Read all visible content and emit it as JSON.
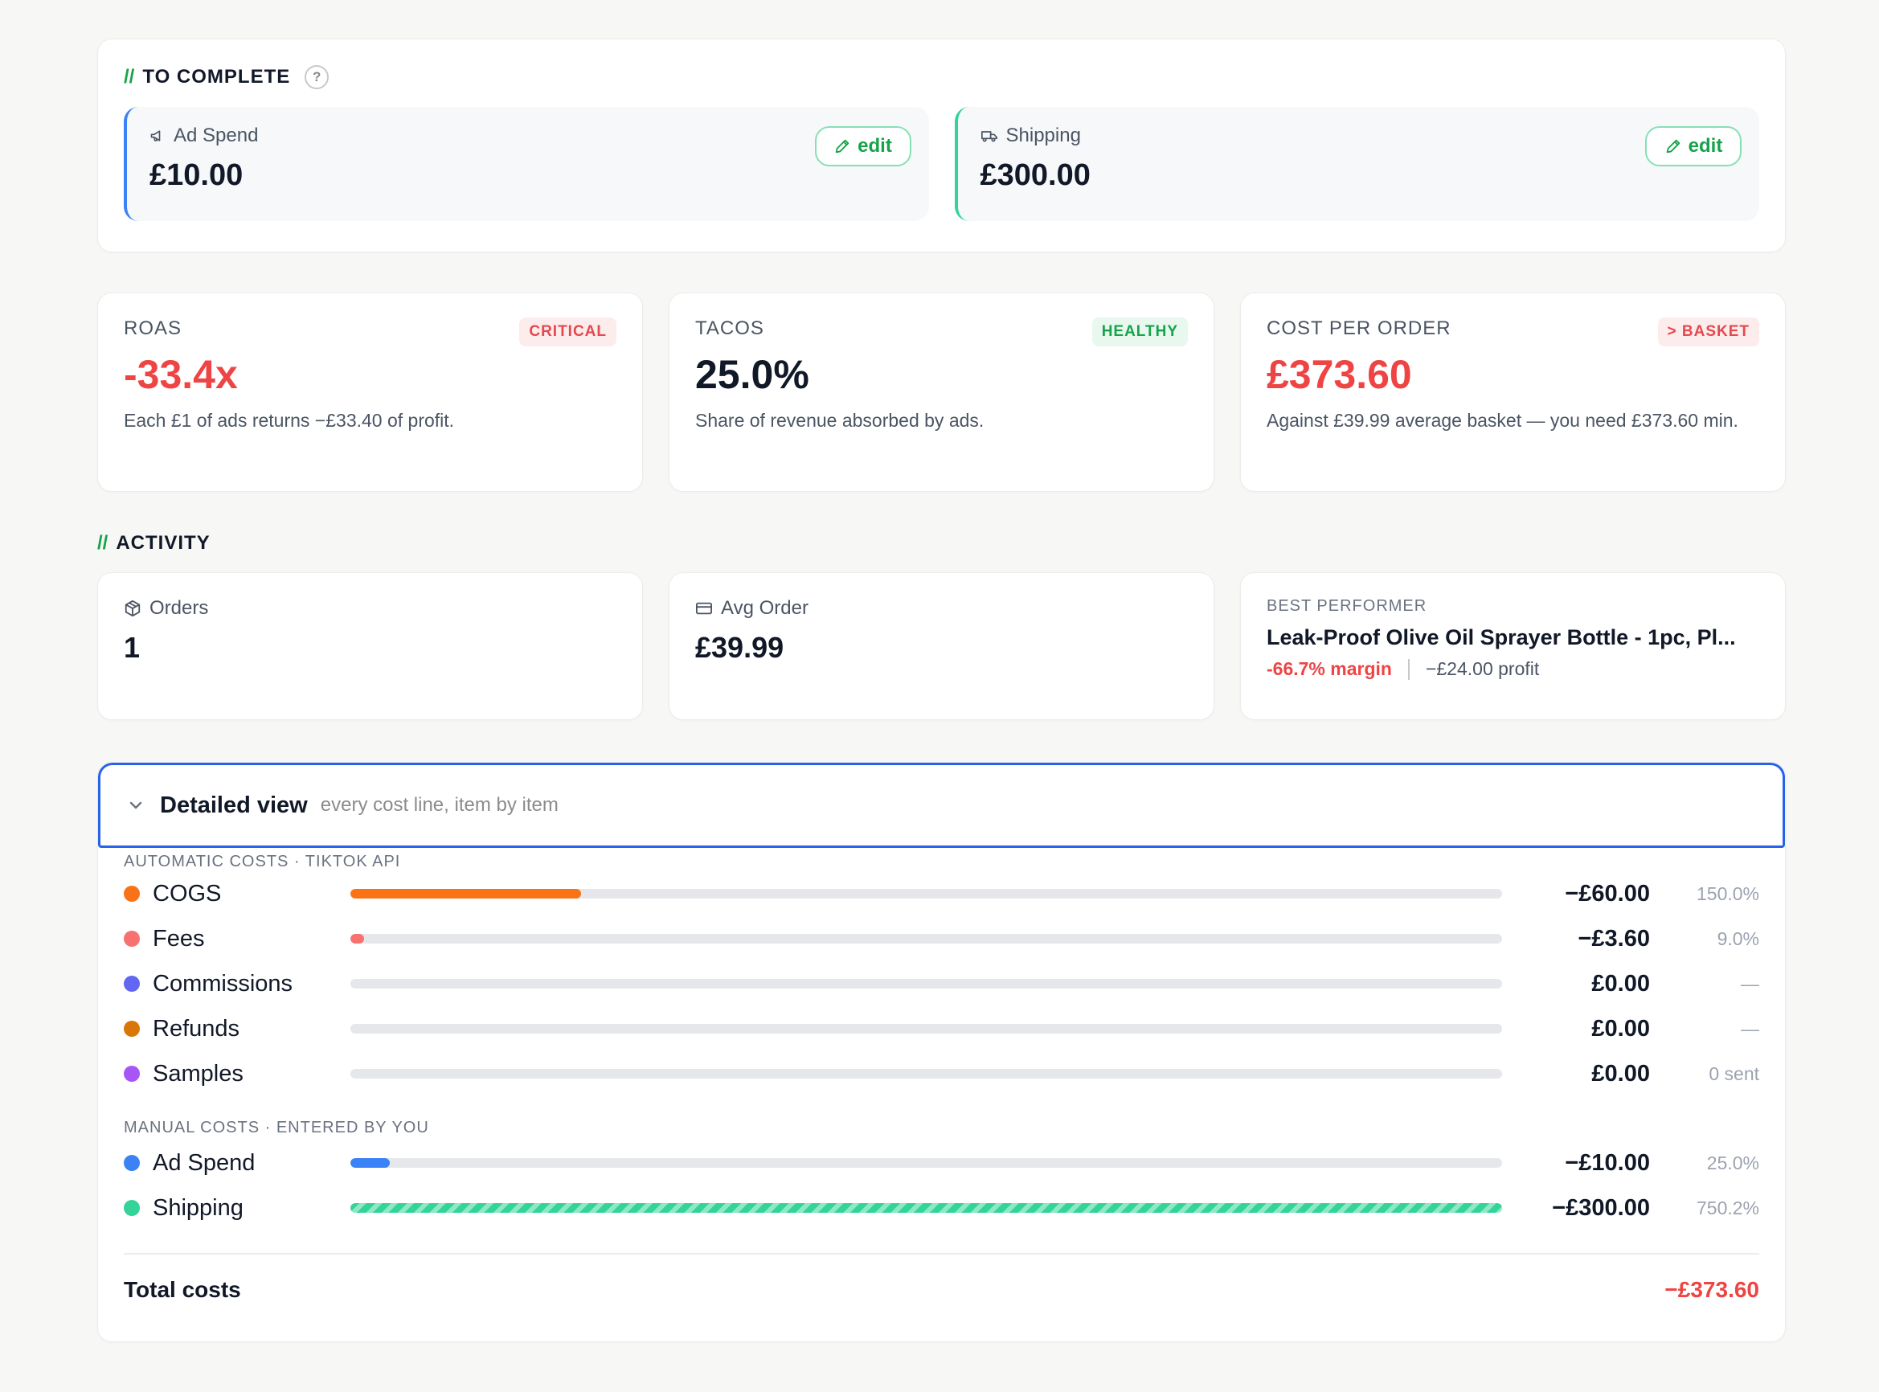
{
  "to_complete": {
    "slash": "//",
    "title": "TO COMPLETE",
    "help": "?",
    "items": [
      {
        "label": "Ad Spend",
        "value": "£10.00",
        "edit": "edit",
        "icon": "megaphone-icon",
        "accent": "#3b82f6"
      },
      {
        "label": "Shipping",
        "value": "£300.00",
        "edit": "edit",
        "icon": "truck-icon",
        "accent": "#34d399"
      }
    ]
  },
  "kpis": [
    {
      "label": "ROAS",
      "badge": "CRITICAL",
      "value": "-33.4x",
      "desc": "Each £1 of ads returns −£33.40 of profit."
    },
    {
      "label": "TACOS",
      "badge": "HEALTHY",
      "value": "25.0%",
      "desc": "Share of revenue absorbed by ads."
    },
    {
      "label": "COST PER ORDER",
      "badge": "> BASKET",
      "value": "£373.60",
      "desc": "Against £39.99 average basket — you need £373.60 min."
    }
  ],
  "activity": {
    "slash": "//",
    "title": "ACTIVITY",
    "orders": {
      "label": "Orders",
      "value": "1",
      "icon": "box-icon"
    },
    "avg_order": {
      "label": "Avg Order",
      "value": "£39.99",
      "icon": "credit-card-icon"
    },
    "best": {
      "label": "BEST PERFORMER",
      "name": "Leak-Proof Olive Oil Sprayer Bottle - 1pc, Pl...",
      "margin": "-66.7% margin",
      "profit": "−£24.00 profit"
    }
  },
  "detail": {
    "title": "Detailed view",
    "subtitle": "every cost line, item by item",
    "auto_label": "AUTOMATIC COSTS · TIKTOK API",
    "auto_rows": [
      {
        "name": "COGS",
        "amount": "−£60.00",
        "pct": "150.0%",
        "color": "#f97316",
        "fill": 0.2
      },
      {
        "name": "Fees",
        "amount": "−£3.60",
        "pct": "9.0%",
        "color": "#f87171",
        "fill": 0.012
      },
      {
        "name": "Commissions",
        "amount": "£0.00",
        "pct": "—",
        "color": "#6366f1",
        "fill": 0
      },
      {
        "name": "Refunds",
        "amount": "£0.00",
        "pct": "—",
        "color": "#d97706",
        "fill": 0
      },
      {
        "name": "Samples",
        "amount": "£0.00",
        "pct": "0 sent",
        "color": "#a855f7",
        "fill": 0
      }
    ],
    "manual_label": "MANUAL COSTS · ENTERED BY YOU",
    "manual_rows": [
      {
        "name": "Ad Spend",
        "amount": "−£10.00",
        "pct": "25.0%",
        "color": "#3b82f6",
        "fill": 0.034
      },
      {
        "name": "Shipping",
        "amount": "−£300.00",
        "pct": "750.2%",
        "color": "#34d399",
        "fill": 1.0
      }
    ],
    "total_label": "Total costs",
    "total_value": "−£373.60"
  }
}
